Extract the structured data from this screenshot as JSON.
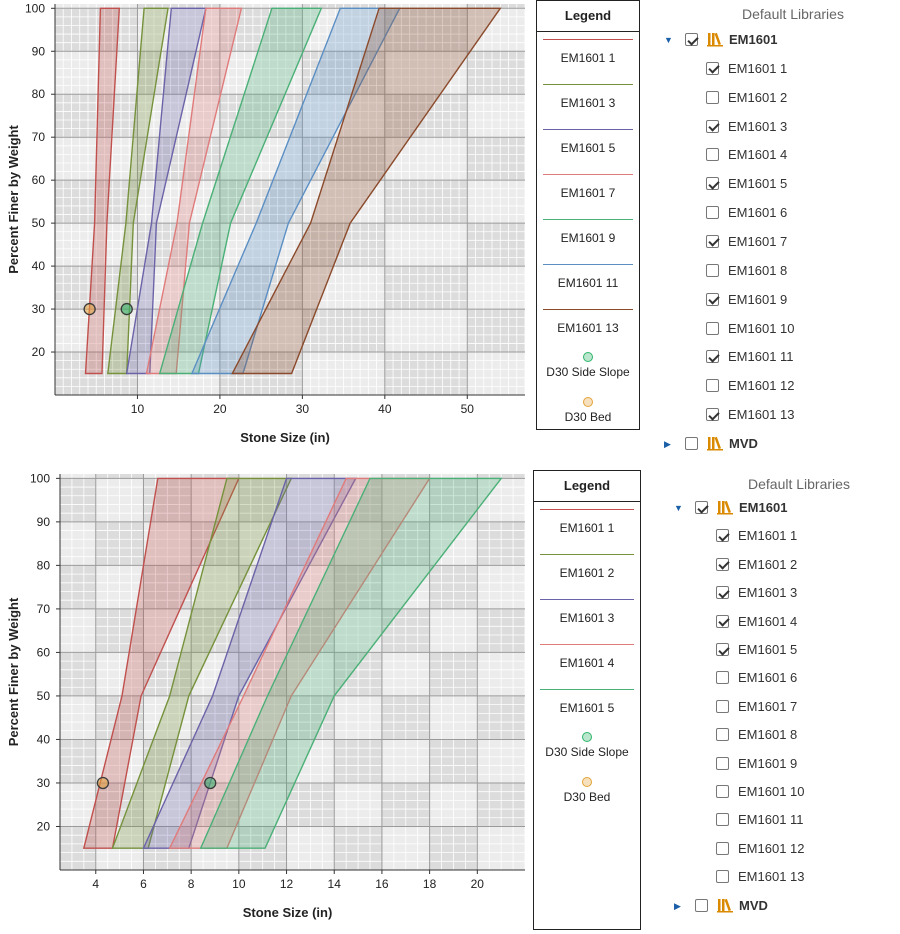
{
  "charts": [
    {
      "chart_data": {
        "type": "area",
        "xlabel": "Stone Size (in)",
        "ylabel": "Percent Finer by Weight",
        "xlim": [
          0,
          57
        ],
        "ylim": [
          10,
          101
        ],
        "xticks": [
          "10",
          "20",
          "30",
          "40",
          "50"
        ],
        "xtick_values": [
          10,
          20,
          30,
          40,
          50
        ],
        "yticks": [
          "20",
          "30",
          "40",
          "50",
          "60",
          "70",
          "80",
          "90",
          "100"
        ],
        "ytick_values": [
          20,
          30,
          40,
          50,
          60,
          70,
          80,
          90,
          100
        ],
        "series": [
          {
            "name": "EM1601 1",
            "color": "#c0504d",
            "polygon": [
              [
                3.7,
                15
              ],
              [
                5.7,
                15
              ],
              [
                6.3,
                50
              ],
              [
                7.8,
                100
              ],
              [
                5.5,
                100
              ],
              [
                4.8,
                50
              ]
            ]
          },
          {
            "name": "EM1601 3",
            "color": "#76923c",
            "polygon": [
              [
                6.4,
                15
              ],
              [
                8.7,
                15
              ],
              [
                9.5,
                50
              ],
              [
                13.7,
                100
              ],
              [
                10.8,
                100
              ],
              [
                8.6,
                50
              ]
            ]
          },
          {
            "name": "EM1601 5",
            "color": "#6b63a8",
            "polygon": [
              [
                8.7,
                15
              ],
              [
                11.5,
                15
              ],
              [
                12.3,
                50
              ],
              [
                18.3,
                100
              ],
              [
                14.1,
                100
              ],
              [
                11.7,
                50
              ]
            ]
          },
          {
            "name": "EM1601 7",
            "color": "#e07b7b",
            "polygon": [
              [
                11.1,
                15
              ],
              [
                14.7,
                15
              ],
              [
                16.3,
                50
              ],
              [
                22.6,
                100
              ],
              [
                18.3,
                100
              ],
              [
                14.8,
                50
              ]
            ]
          },
          {
            "name": "EM1601 9",
            "color": "#4bb077",
            "polygon": [
              [
                12.7,
                15
              ],
              [
                17.4,
                15
              ],
              [
                21.3,
                50
              ],
              [
                32.3,
                100
              ],
              [
                26.3,
                100
              ],
              [
                17.9,
                50
              ]
            ]
          },
          {
            "name": "EM1601 11",
            "color": "#5b8fc4",
            "polygon": [
              [
                16.6,
                15
              ],
              [
                22.8,
                15
              ],
              [
                28.3,
                50
              ],
              [
                41.8,
                100
              ],
              [
                34.6,
                100
              ],
              [
                24.4,
                50
              ]
            ]
          },
          {
            "name": "EM1601 13",
            "color": "#8b4a2b",
            "polygon": [
              [
                21.5,
                15
              ],
              [
                28.7,
                15
              ],
              [
                35.8,
                50
              ],
              [
                54.0,
                100
              ],
              [
                39.3,
                100
              ],
              [
                31.0,
                50
              ]
            ]
          }
        ],
        "points": [
          {
            "name": "D30 Bed",
            "x": 4.2,
            "y": 30,
            "color": "#e3a33a"
          },
          {
            "name": "D30 Side Slope",
            "x": 8.7,
            "y": 30,
            "color": "#2fb56a"
          }
        ]
      },
      "legend": {
        "title": "Legend",
        "items": [
          {
            "label": "EM1601 1",
            "color": "#c0504d"
          },
          {
            "label": "EM1601 3",
            "color": "#76923c"
          },
          {
            "label": "EM1601 5",
            "color": "#6b63a8"
          },
          {
            "label": "EM1601 7",
            "color": "#e07b7b"
          },
          {
            "label": "EM1601 9",
            "color": "#4bb077"
          },
          {
            "label": "EM1601 11",
            "color": "#5b8fc4"
          },
          {
            "label": "EM1601 13",
            "color": "#8b4a2b"
          }
        ],
        "points": [
          {
            "label": "D30 Side Slope",
            "color": "#2fb56a"
          },
          {
            "label": "D30 Bed",
            "color": "#e3a33a"
          }
        ]
      },
      "tree": {
        "header": "Default Libraries",
        "root": {
          "label": "EM1601",
          "checked": true,
          "expanded": true
        },
        "items": [
          {
            "label": "EM1601 1",
            "checked": true
          },
          {
            "label": "EM1601 2",
            "checked": false
          },
          {
            "label": "EM1601 3",
            "checked": true
          },
          {
            "label": "EM1601 4",
            "checked": false
          },
          {
            "label": "EM1601 5",
            "checked": true
          },
          {
            "label": "EM1601 6",
            "checked": false
          },
          {
            "label": "EM1601 7",
            "checked": true
          },
          {
            "label": "EM1601 8",
            "checked": false
          },
          {
            "label": "EM1601 9",
            "checked": true
          },
          {
            "label": "EM1601 10",
            "checked": false
          },
          {
            "label": "EM1601 11",
            "checked": true
          },
          {
            "label": "EM1601 12",
            "checked": false
          },
          {
            "label": "EM1601 13",
            "checked": true
          }
        ],
        "other": {
          "label": "MVD",
          "checked": false,
          "expanded": false
        }
      }
    },
    {
      "chart_data": {
        "type": "area",
        "xlabel": "Stone Size (in)",
        "ylabel": "Percent Finer by Weight",
        "xlim": [
          2.5,
          22
        ],
        "ylim": [
          10,
          101
        ],
        "xticks": [
          "4",
          "6",
          "8",
          "10",
          "12",
          "14",
          "16",
          "18",
          "20"
        ],
        "xtick_values": [
          4,
          6,
          8,
          10,
          12,
          14,
          16,
          18,
          20
        ],
        "yticks": [
          "20",
          "30",
          "40",
          "50",
          "60",
          "70",
          "80",
          "90",
          "100"
        ],
        "ytick_values": [
          20,
          30,
          40,
          50,
          60,
          70,
          80,
          90,
          100
        ],
        "series": [
          {
            "name": "EM1601 1",
            "color": "#c0504d",
            "polygon": [
              [
                3.5,
                15
              ],
              [
                4.7,
                15
              ],
              [
                5.9,
                50
              ],
              [
                10.0,
                100
              ],
              [
                6.6,
                100
              ],
              [
                5.1,
                50
              ]
            ]
          },
          {
            "name": "EM1601 2",
            "color": "#76923c",
            "polygon": [
              [
                4.7,
                15
              ],
              [
                6.2,
                15
              ],
              [
                7.9,
                50
              ],
              [
                12.2,
                100
              ],
              [
                9.5,
                100
              ],
              [
                7.1,
                50
              ]
            ]
          },
          {
            "name": "EM1601 3",
            "color": "#6b63a8",
            "polygon": [
              [
                6.0,
                15
              ],
              [
                7.9,
                15
              ],
              [
                10.0,
                50
              ],
              [
                14.9,
                100
              ],
              [
                12.0,
                100
              ],
              [
                8.9,
                50
              ]
            ]
          },
          {
            "name": "EM1601 4",
            "color": "#e07b7b",
            "polygon": [
              [
                7.1,
                15
              ],
              [
                9.5,
                15
              ],
              [
                12.2,
                50
              ],
              [
                18.0,
                100
              ],
              [
                14.5,
                100
              ],
              [
                10.2,
                50
              ]
            ]
          },
          {
            "name": "EM1601 5",
            "color": "#4bb077",
            "polygon": [
              [
                8.4,
                15
              ],
              [
                11.1,
                15
              ],
              [
                14.0,
                50
              ],
              [
                21.0,
                100
              ],
              [
                15.5,
                100
              ],
              [
                11.2,
                50
              ]
            ]
          }
        ],
        "points": [
          {
            "name": "D30 Bed",
            "x": 4.3,
            "y": 30,
            "color": "#e3a33a"
          },
          {
            "name": "D30 Side Slope",
            "x": 8.8,
            "y": 30,
            "color": "#2fb56a"
          }
        ]
      },
      "legend": {
        "title": "Legend",
        "items": [
          {
            "label": "EM1601 1",
            "color": "#c0504d"
          },
          {
            "label": "EM1601 2",
            "color": "#76923c"
          },
          {
            "label": "EM1601 3",
            "color": "#6b63a8"
          },
          {
            "label": "EM1601 4",
            "color": "#e07b7b"
          },
          {
            "label": "EM1601 5",
            "color": "#4bb077"
          }
        ],
        "points": [
          {
            "label": "D30 Side Slope",
            "color": "#2fb56a"
          },
          {
            "label": "D30 Bed",
            "color": "#e3a33a"
          }
        ]
      },
      "tree": {
        "header": "Default Libraries",
        "root": {
          "label": "EM1601",
          "checked": true,
          "expanded": true
        },
        "items": [
          {
            "label": "EM1601 1",
            "checked": true
          },
          {
            "label": "EM1601 2",
            "checked": true
          },
          {
            "label": "EM1601 3",
            "checked": true
          },
          {
            "label": "EM1601 4",
            "checked": true
          },
          {
            "label": "EM1601 5",
            "checked": true
          },
          {
            "label": "EM1601 6",
            "checked": false
          },
          {
            "label": "EM1601 7",
            "checked": false
          },
          {
            "label": "EM1601 8",
            "checked": false
          },
          {
            "label": "EM1601 9",
            "checked": false
          },
          {
            "label": "EM1601 10",
            "checked": false
          },
          {
            "label": "EM1601 11",
            "checked": false
          },
          {
            "label": "EM1601 12",
            "checked": false
          },
          {
            "label": "EM1601 13",
            "checked": false
          }
        ],
        "other": {
          "label": "MVD",
          "checked": false,
          "expanded": false
        }
      }
    }
  ]
}
